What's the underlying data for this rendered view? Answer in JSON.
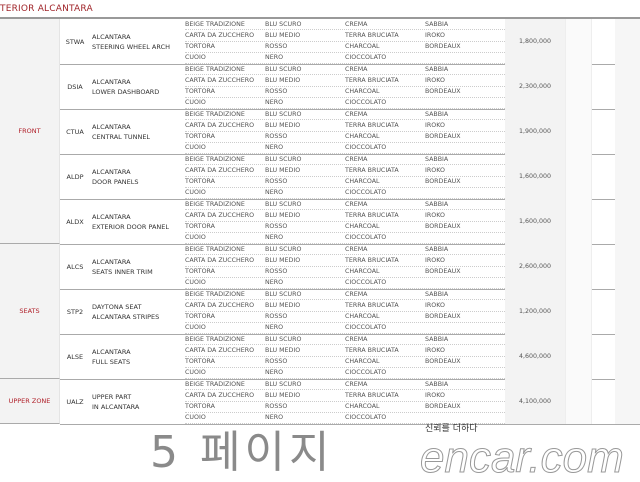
{
  "section_title": "TERIOR ALCANTARA",
  "zones": [
    {
      "label": "FRONT",
      "blocks": 5
    },
    {
      "label": "SEATS",
      "blocks": 3
    },
    {
      "label": "UPPER ZONE",
      "blocks": 1
    }
  ],
  "color_options": [
    [
      "BEIGE TRADIZIONE",
      "BLU SCURO",
      "CREMA",
      "SABBIA"
    ],
    [
      "CARTA DA ZUCCHERO",
      "BLU MEDIO",
      "TERRA BRUCIATA",
      "IROKO"
    ],
    [
      "TORTORA",
      "ROSSO",
      "CHARCOAL",
      "BORDEAUX"
    ],
    [
      "CUOIO",
      "NERO",
      "CIOCCOLATO",
      ""
    ]
  ],
  "items": [
    {
      "code": "STWA",
      "desc": [
        "ALCANTARA",
        "STEERING WHEEL ARCH"
      ],
      "price": "1,800,000"
    },
    {
      "code": "DSIA",
      "desc": [
        "ALCANTARA",
        "LOWER DASHBOARD"
      ],
      "price": "2,300,000"
    },
    {
      "code": "CTUA",
      "desc": [
        "ALCANTARA",
        "CENTRAL TUNNEL"
      ],
      "price": "1,900,000"
    },
    {
      "code": "ALDP",
      "desc": [
        "ALCANTARA",
        "DOOR PANELS"
      ],
      "price": "1,600,000"
    },
    {
      "code": "ALDX",
      "desc": [
        "ALCANTARA",
        "EXTERIOR DOOR PANEL"
      ],
      "price": "1,600,000"
    },
    {
      "code": "ALCS",
      "desc": [
        "ALCANTARA",
        "SEATS INNER TRIM"
      ],
      "price": "2,600,000"
    },
    {
      "code": "STP2",
      "desc": [
        "DAYTONA SEAT",
        "ALCANTARA STRIPES"
      ],
      "price": "1,200,000"
    },
    {
      "code": "ALSE",
      "desc": [
        "ALCANTARA",
        "FULL SEATS"
      ],
      "price": "4,600,000"
    },
    {
      "code": "UALZ",
      "desc": [
        "UPPER PART",
        "IN ALCANTARA"
      ],
      "price": "4,100,000"
    }
  ],
  "watermark": {
    "page": "5 페이지",
    "slogan": "신뢰를 더하다",
    "brand": "encar.com"
  }
}
